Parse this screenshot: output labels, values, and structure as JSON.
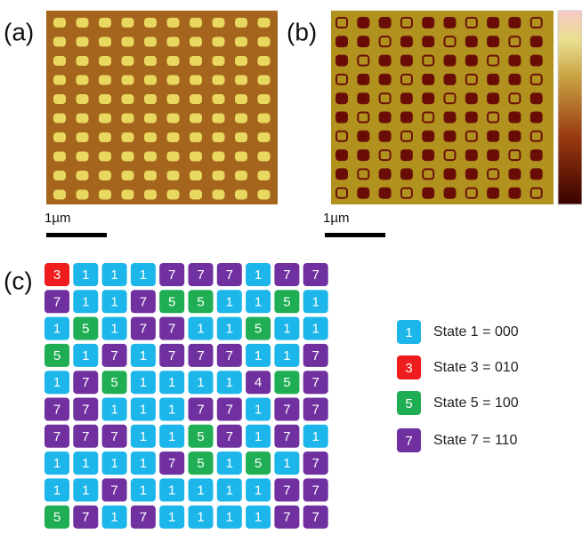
{
  "panels": {
    "a": "(a)",
    "b": "(b)",
    "c": "(c)"
  },
  "scale_bars": {
    "a": "1µm",
    "b": "1µm"
  },
  "grid": [
    [
      "3",
      "1",
      "1",
      "1",
      "7",
      "7",
      "7",
      "1",
      "7",
      "7"
    ],
    [
      "7",
      "1",
      "1",
      "7",
      "5",
      "5",
      "1",
      "1",
      "5",
      "1"
    ],
    [
      "1",
      "5",
      "1",
      "7",
      "7",
      "1",
      "1",
      "5",
      "1",
      "1"
    ],
    [
      "5",
      "1",
      "7",
      "1",
      "7",
      "7",
      "7",
      "1",
      "1",
      "7"
    ],
    [
      "1",
      "7",
      "5",
      "1",
      "1",
      "1",
      "1",
      "4",
      "5",
      "7"
    ],
    [
      "7",
      "7",
      "1",
      "1",
      "1",
      "7",
      "7",
      "1",
      "7",
      "7"
    ],
    [
      "7",
      "7",
      "7",
      "1",
      "1",
      "5",
      "7",
      "1",
      "7",
      "1"
    ],
    [
      "1",
      "1",
      "1",
      "1",
      "7",
      "5",
      "1",
      "5",
      "1",
      "7"
    ],
    [
      "1",
      "1",
      "7",
      "1",
      "1",
      "1",
      "1",
      "1",
      "7",
      "7"
    ],
    [
      "5",
      "7",
      "1",
      "7",
      "1",
      "1",
      "1",
      "1",
      "7",
      "7"
    ]
  ],
  "legend": [
    {
      "key": "1",
      "label": "State 1 = 000",
      "color": "#1cb6ea"
    },
    {
      "key": "3",
      "label": "State 3 = 010",
      "color": "#ee1c1c"
    },
    {
      "key": "5",
      "label": "State 5 = 100",
      "color": "#1fae53"
    },
    {
      "key": "7",
      "label": "State 7 = 110",
      "color": "#7030a0"
    }
  ]
}
